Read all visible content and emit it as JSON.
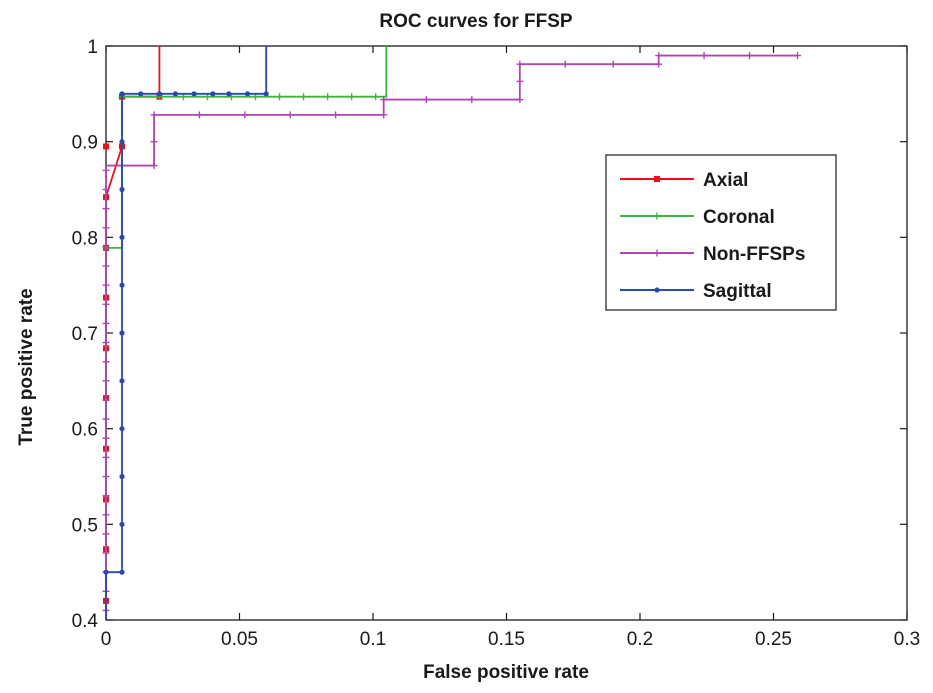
{
  "chart_data": {
    "type": "line",
    "title": "ROC curves for FFSP",
    "xlabel": "False positive rate",
    "ylabel": "True positive rate",
    "xlim": [
      0,
      0.3
    ],
    "ylim": [
      0.4,
      1
    ],
    "xticks": [
      0,
      0.05,
      0.1,
      0.15,
      0.2,
      0.25,
      0.3
    ],
    "yticks": [
      0.4,
      0.5,
      0.6,
      0.7,
      0.8,
      0.9,
      1
    ],
    "xtick_labels": [
      "0",
      "0.05",
      "0.1",
      "0.15",
      "0.2",
      "0.25",
      "0.3"
    ],
    "ytick_labels": [
      "0.4",
      "0.5",
      "0.6",
      "0.7",
      "0.8",
      "0.9",
      "1"
    ],
    "grid": false,
    "legend_position": "right",
    "series": [
      {
        "name": "Axial",
        "color": "#e8141c",
        "marker": "square",
        "x": [
          0,
          0,
          0,
          0,
          0,
          0,
          0,
          0,
          0,
          0,
          0,
          0,
          0,
          0,
          0.006,
          0.006,
          0.006,
          0.006,
          0.02,
          0.02,
          0.02,
          0.02
        ],
        "y": [
          0.4,
          0.42,
          0.447,
          0.474,
          0.5,
          0.526,
          0.553,
          0.579,
          0.605,
          0.632,
          0.658,
          0.684,
          0.737,
          0.842,
          0.895,
          0.895,
          0.947,
          0.947,
          0.947,
          0.947,
          0.947,
          1
        ],
        "marker_points": [
          [
            0,
            0.42
          ],
          [
            0,
            0.474
          ],
          [
            0,
            0.526
          ],
          [
            0,
            0.579
          ],
          [
            0,
            0.632
          ],
          [
            0,
            0.684
          ],
          [
            0,
            0.737
          ],
          [
            0,
            0.789
          ],
          [
            0,
            0.842
          ],
          [
            0,
            0.895
          ],
          [
            0.006,
            0.895
          ],
          [
            0.006,
            0.947
          ],
          [
            0.02,
            0.947
          ]
        ]
      },
      {
        "name": "Coronal",
        "color": "#3ab53a",
        "marker": "plus",
        "x": [
          0,
          0,
          0.006,
          0.006,
          0.105,
          0.105
        ],
        "y": [
          0.4,
          0.789,
          0.789,
          0.947,
          0.947,
          1
        ],
        "marker_points": [
          [
            0,
            0.789
          ],
          [
            0.006,
            0.947
          ],
          [
            0.02,
            0.947
          ],
          [
            0.029,
            0.947
          ],
          [
            0.038,
            0.947
          ],
          [
            0.047,
            0.947
          ],
          [
            0.056,
            0.947
          ],
          [
            0.065,
            0.947
          ],
          [
            0.074,
            0.947
          ],
          [
            0.083,
            0.947
          ],
          [
            0.092,
            0.947
          ],
          [
            0.101,
            0.947
          ]
        ]
      },
      {
        "name": "Non-FFSPs",
        "color": "#b044b4",
        "marker": "plus",
        "x": [
          0,
          0,
          0.018,
          0.018,
          0.104,
          0.104,
          0.155,
          0.155,
          0.207,
          0.207,
          0.259
        ],
        "y": [
          0.4,
          0.875,
          0.875,
          0.928,
          0.928,
          0.944,
          0.944,
          0.981,
          0.981,
          0.99,
          0.99
        ],
        "marker_points": [
          [
            0,
            0.41
          ],
          [
            0,
            0.43
          ],
          [
            0,
            0.45
          ],
          [
            0,
            0.47
          ],
          [
            0,
            0.49
          ],
          [
            0,
            0.51
          ],
          [
            0,
            0.53
          ],
          [
            0,
            0.55
          ],
          [
            0,
            0.57
          ],
          [
            0,
            0.59
          ],
          [
            0,
            0.61
          ],
          [
            0,
            0.63
          ],
          [
            0,
            0.65
          ],
          [
            0,
            0.67
          ],
          [
            0,
            0.69
          ],
          [
            0,
            0.71
          ],
          [
            0,
            0.73
          ],
          [
            0,
            0.75
          ],
          [
            0,
            0.77
          ],
          [
            0,
            0.79
          ],
          [
            0,
            0.81
          ],
          [
            0,
            0.83
          ],
          [
            0,
            0.85
          ],
          [
            0,
            0.87
          ],
          [
            0.018,
            0.875
          ],
          [
            0.018,
            0.9
          ],
          [
            0.018,
            0.928
          ],
          [
            0.035,
            0.928
          ],
          [
            0.052,
            0.928
          ],
          [
            0.069,
            0.928
          ],
          [
            0.086,
            0.928
          ],
          [
            0.104,
            0.928
          ],
          [
            0.104,
            0.944
          ],
          [
            0.12,
            0.944
          ],
          [
            0.137,
            0.944
          ],
          [
            0.155,
            0.944
          ],
          [
            0.155,
            0.963
          ],
          [
            0.155,
            0.981
          ],
          [
            0.172,
            0.981
          ],
          [
            0.19,
            0.981
          ],
          [
            0.207,
            0.981
          ],
          [
            0.207,
            0.99
          ],
          [
            0.224,
            0.99
          ],
          [
            0.241,
            0.99
          ],
          [
            0.259,
            0.99
          ]
        ]
      },
      {
        "name": "Sagittal",
        "color": "#2a48b4",
        "marker": "dot",
        "x": [
          0,
          0,
          0.006,
          0.006,
          0.06,
          0.06
        ],
        "y": [
          0.4,
          0.45,
          0.45,
          0.95,
          0.95,
          1
        ],
        "marker_points": [
          [
            0,
            0.45
          ],
          [
            0.006,
            0.45
          ],
          [
            0.006,
            0.5
          ],
          [
            0.006,
            0.55
          ],
          [
            0.006,
            0.6
          ],
          [
            0.006,
            0.65
          ],
          [
            0.006,
            0.7
          ],
          [
            0.006,
            0.75
          ],
          [
            0.006,
            0.8
          ],
          [
            0.006,
            0.85
          ],
          [
            0.006,
            0.9
          ],
          [
            0.006,
            0.95
          ],
          [
            0.013,
            0.95
          ],
          [
            0.02,
            0.95
          ],
          [
            0.026,
            0.95
          ],
          [
            0.033,
            0.95
          ],
          [
            0.04,
            0.95
          ],
          [
            0.046,
            0.95
          ],
          [
            0.053,
            0.95
          ],
          [
            0.06,
            0.95
          ]
        ]
      }
    ]
  }
}
